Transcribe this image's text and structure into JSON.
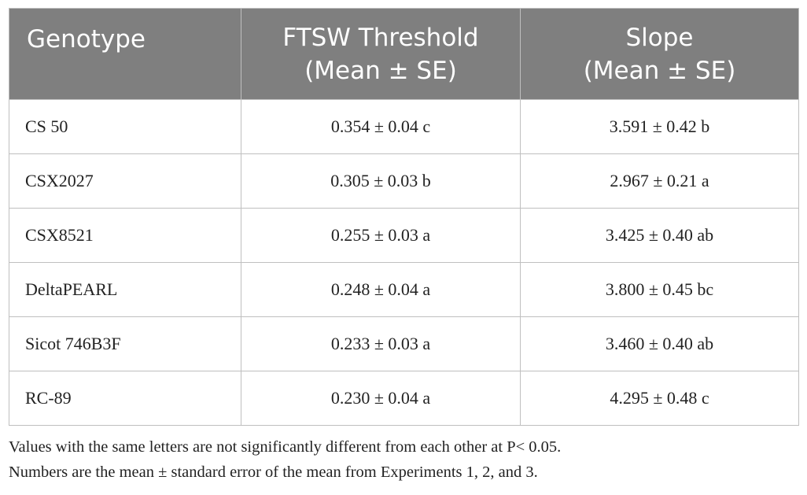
{
  "table": {
    "header": [
      [
        "Genotype"
      ],
      [
        "FTSW Threshold",
        "(Mean ± SE)"
      ],
      [
        "Slope",
        "(Mean ± SE)"
      ]
    ],
    "rows": [
      [
        "CS 50",
        "0.354 ± 0.04 c",
        "3.591 ± 0.42 b"
      ],
      [
        "CSX2027",
        "0.305 ± 0.03 b",
        "2.967 ± 0.21 a"
      ],
      [
        "CSX8521",
        "0.255 ± 0.03 a",
        "3.425 ± 0.40 ab"
      ],
      [
        "DeltaPEARL",
        "0.248 ± 0.04 a",
        "3.800 ± 0.45 bc"
      ],
      [
        "Sicot 746B3F",
        "0.233 ± 0.03 a",
        "3.460 ± 0.40 ab"
      ],
      [
        "RC-89",
        "0.230 ± 0.04 a",
        "4.295 ± 0.48 c"
      ]
    ]
  },
  "footnotes": [
    "Values with the same letters are not significantly different from each other at P< 0.05.",
    "Numbers are the mean ± standard error of the mean from Experiments 1, 2, and 3."
  ]
}
